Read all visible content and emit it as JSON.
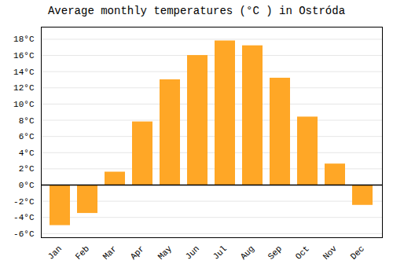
{
  "chart_data": {
    "type": "bar",
    "title": "Average monthly temperatures (°C ) in Ostróda",
    "categories": [
      "Jan",
      "Feb",
      "Mar",
      "Apr",
      "May",
      "Jun",
      "Jul",
      "Aug",
      "Sep",
      "Oct",
      "Nov",
      "Dec"
    ],
    "values": [
      -5.0,
      -3.5,
      1.6,
      7.8,
      13.0,
      16.0,
      17.8,
      17.2,
      13.2,
      8.4,
      2.6,
      -2.5
    ],
    "color": "#FFA726",
    "ylim": [
      -6.5,
      19.5
    ],
    "yticks": [
      {
        "value": -6,
        "label": "-6°C"
      },
      {
        "value": -4,
        "label": "-4°C"
      },
      {
        "value": -2,
        "label": "-2°C"
      },
      {
        "value": 0,
        "label": "0°C"
      },
      {
        "value": 2,
        "label": "2°C"
      },
      {
        "value": 4,
        "label": "4°C"
      },
      {
        "value": 6,
        "label": "6°C"
      },
      {
        "value": 8,
        "label": "8°C"
      },
      {
        "value": 10,
        "label": "10°C"
      },
      {
        "value": 12,
        "label": "12°C"
      },
      {
        "value": 14,
        "label": "14°C"
      },
      {
        "value": 16,
        "label": "16°C"
      },
      {
        "value": 18,
        "label": "18°C"
      }
    ],
    "grid": true
  }
}
